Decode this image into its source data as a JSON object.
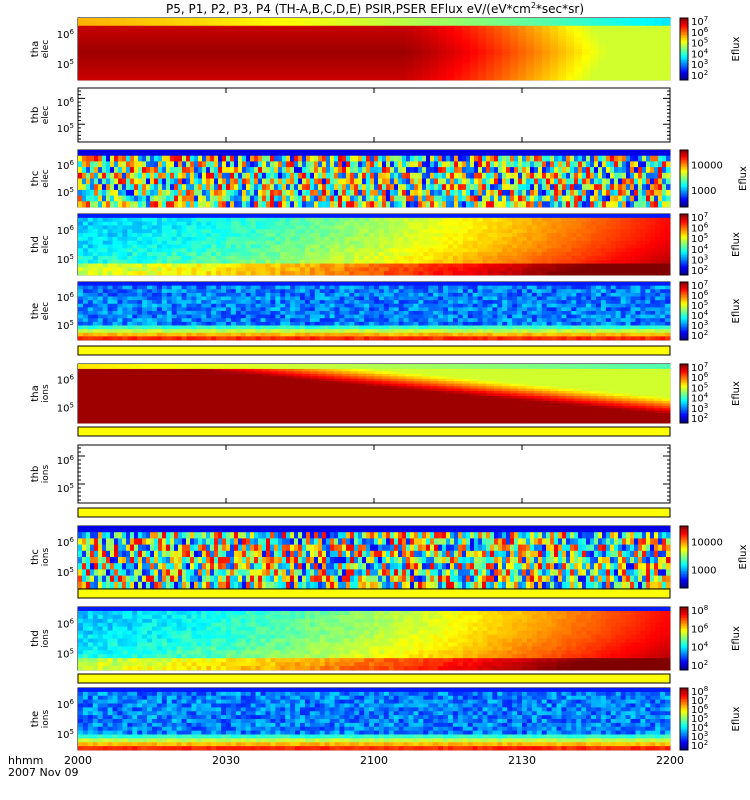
{
  "chart_data": {
    "type": "heatmap",
    "title": "P5, P1, P2, P3, P4 (TH-A,B,C,D,E) PSIR,PSER EFlux eV/(eV*cm2*sec*sr)",
    "title_parts": {
      "main": "P5, P1, P2, P3, P4 (TH-A,B,C,D,E) PSIR,PSER EFlux eV/(eV*cm",
      "sup": "2",
      "tail": "*sec*sr)"
    },
    "x_ticks": [
      "2000",
      "2030",
      "2100",
      "2130",
      "2200"
    ],
    "x_axis_label": "hhmm",
    "date_label": "2007 Nov 09",
    "colorbar_label": "Eflux",
    "panels": [
      {
        "id": "tha-elec",
        "ylabel": "tha",
        "ylabel2": "elec",
        "y_ticks": [
          "10^6",
          "10^5"
        ],
        "colorbar": [
          "10^2",
          "10^3",
          "10^4",
          "10^5",
          "10^6",
          "10^7"
        ],
        "pattern": "smooth-red-top",
        "has_data": true,
        "yellow_bar_below": false
      },
      {
        "id": "thb-elec",
        "ylabel": "thb",
        "ylabel2": "elec",
        "y_ticks": [
          "10^6",
          "10^5"
        ],
        "colorbar": [],
        "pattern": "empty",
        "has_data": false,
        "yellow_bar_below": false
      },
      {
        "id": "thc-elec",
        "ylabel": "thc",
        "ylabel2": "elec",
        "y_ticks": [
          "10^6",
          "10^5"
        ],
        "colorbar": [
          "1000",
          "10000"
        ],
        "colorbar_linear": true,
        "pattern": "noisy",
        "has_data": true,
        "yellow_bar_below": false
      },
      {
        "id": "thd-elec",
        "ylabel": "thd",
        "ylabel2": "elec",
        "y_ticks": [
          "10^6",
          "10^5"
        ],
        "colorbar": [
          "10^2",
          "10^3",
          "10^4",
          "10^5",
          "10^6",
          "10^7"
        ],
        "pattern": "green-ramp",
        "has_data": true,
        "yellow_bar_below": false
      },
      {
        "id": "the-elec",
        "ylabel": "the",
        "ylabel2": "elec",
        "y_ticks": [
          "10^6",
          "10^5"
        ],
        "colorbar": [
          "10^2",
          "10^3",
          "10^4",
          "10^5",
          "10^6",
          "10^7"
        ],
        "pattern": "blue-noisy",
        "has_data": true,
        "yellow_bar_below": true
      },
      {
        "id": "tha-ions",
        "ylabel": "tha",
        "ylabel2": "ions",
        "y_ticks": [
          "10^6",
          "10^5"
        ],
        "colorbar": [
          "10^2",
          "10^3",
          "10^4",
          "10^5",
          "10^6",
          "10^7"
        ],
        "pattern": "smooth-red-diag",
        "has_data": true,
        "yellow_bar_below": true
      },
      {
        "id": "thb-ions",
        "ylabel": "thb",
        "ylabel2": "ions",
        "y_ticks": [
          "10^6",
          "10^5"
        ],
        "colorbar": [],
        "pattern": "empty",
        "has_data": false,
        "yellow_bar_below": true
      },
      {
        "id": "thc-ions",
        "ylabel": "thc",
        "ylabel2": "ions",
        "y_ticks": [
          "10^6",
          "10^5"
        ],
        "colorbar": [
          "1000",
          "10000"
        ],
        "colorbar_linear": true,
        "pattern": "noisy",
        "has_data": true,
        "yellow_bar_below": true
      },
      {
        "id": "thd-ions",
        "ylabel": "thd",
        "ylabel2": "ions",
        "y_ticks": [
          "10^6",
          "10^5"
        ],
        "colorbar": [
          "10^2",
          "10^4",
          "10^6",
          "10^8"
        ],
        "pattern": "green-ramp",
        "has_data": true,
        "yellow_bar_below": true
      },
      {
        "id": "the-ions",
        "ylabel": "the",
        "ylabel2": "ions",
        "y_ticks": [
          "10^6",
          "10^5"
        ],
        "colorbar": [
          "10^2",
          "10^3",
          "10^4",
          "10^5",
          "10^6",
          "10^7",
          "10^8"
        ],
        "pattern": "blue-noisy",
        "has_data": true,
        "yellow_bar_below": false
      }
    ]
  },
  "colors": {
    "yellow_bar": "#ffff00",
    "empty_panel": "#ffffff",
    "frame": "#000000"
  }
}
